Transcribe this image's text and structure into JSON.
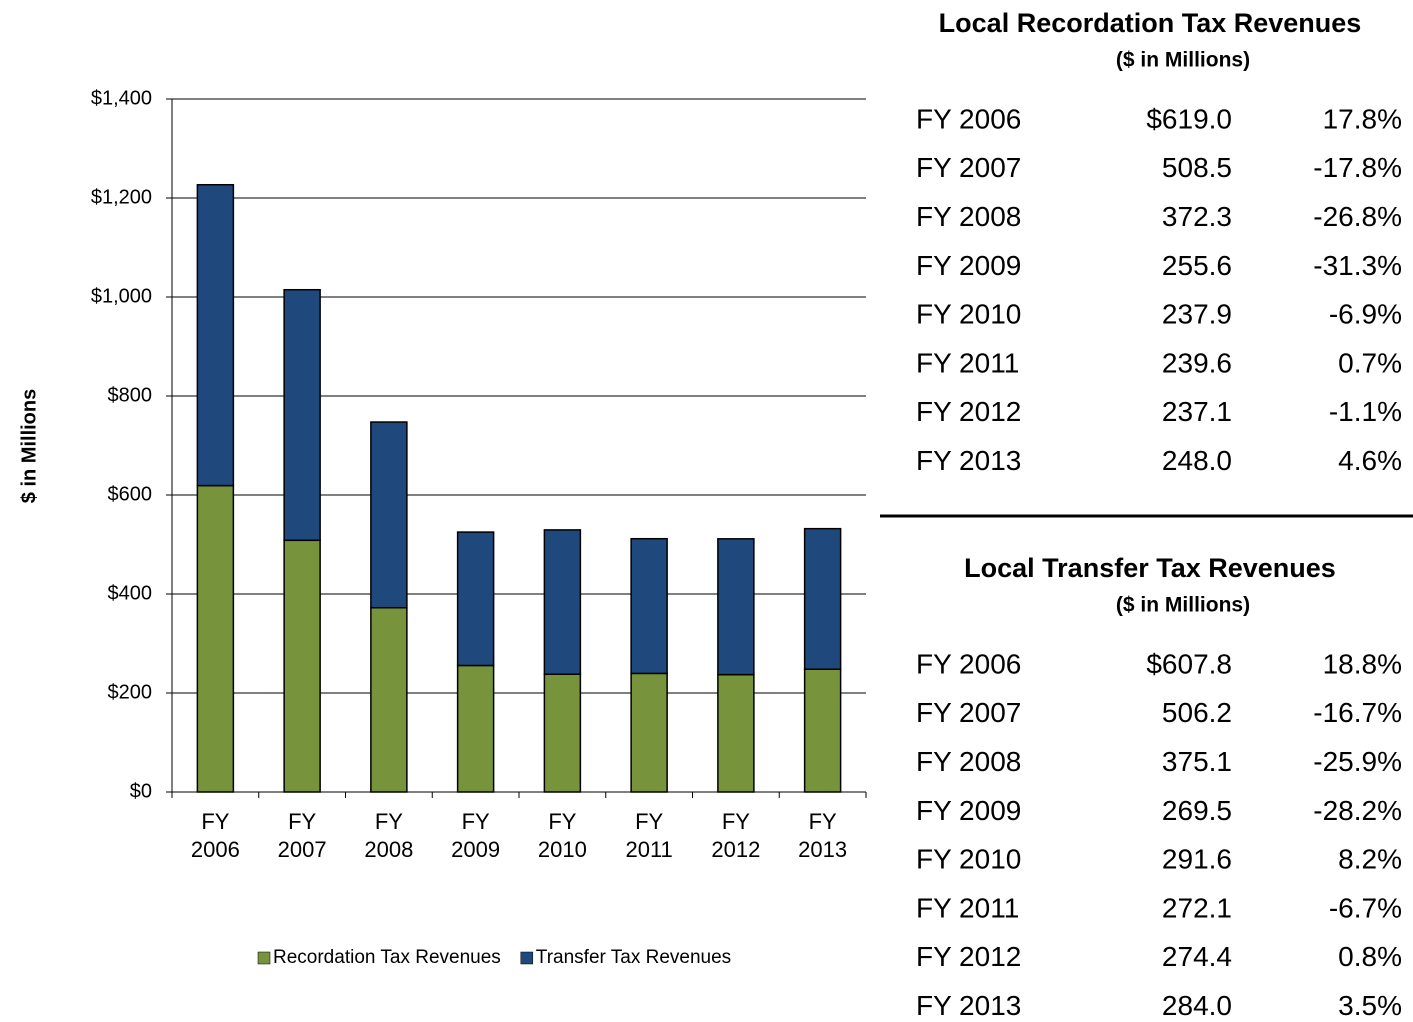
{
  "chart_data": {
    "type": "stacked_bar",
    "ylabel": "$ in Millions",
    "categories": [
      "FY 2006",
      "FY 2007",
      "FY 2008",
      "FY 2009",
      "FY 2010",
      "FY 2011",
      "FY 2012",
      "FY 2013"
    ],
    "series": [
      {
        "name": "Recordation Tax Revenues",
        "color": "#77933c",
        "values": [
          619.0,
          508.5,
          372.3,
          255.6,
          237.9,
          239.6,
          237.1,
          248.0
        ]
      },
      {
        "name": "Transfer Tax Revenues",
        "color": "#1f497d",
        "values": [
          607.8,
          506.2,
          375.1,
          269.5,
          291.6,
          272.1,
          274.4,
          284.0
        ]
      }
    ],
    "ylim": [
      0,
      1400
    ],
    "yticks": [
      {
        "value": 0,
        "label": "$0"
      },
      {
        "value": 200,
        "label": "$200"
      },
      {
        "value": 400,
        "label": "$400"
      },
      {
        "value": 600,
        "label": "$600"
      },
      {
        "value": 800,
        "label": "$800"
      },
      {
        "value": 1000,
        "label": "$1,000"
      },
      {
        "value": 1200,
        "label": "$1,200"
      },
      {
        "value": 1400,
        "label": "$1,400"
      }
    ],
    "grid": true,
    "legend": "bottom"
  },
  "tables": [
    {
      "title": "Local Recordation Tax Revenues",
      "subtitle": "($ in Millions)",
      "rows": [
        [
          "FY 2006",
          "$619.0",
          "17.8%"
        ],
        [
          "FY 2007",
          "508.5",
          "-17.8%"
        ],
        [
          "FY 2008",
          "372.3",
          "-26.8%"
        ],
        [
          "FY 2009",
          "255.6",
          "-31.3%"
        ],
        [
          "FY 2010",
          "237.9",
          "-6.9%"
        ],
        [
          "FY 2011",
          "239.6",
          "0.7%"
        ],
        [
          "FY 2012",
          "237.1",
          "-1.1%"
        ],
        [
          "FY 2013",
          "248.0",
          "4.6%"
        ]
      ]
    },
    {
      "title": "Local Transfer Tax Revenues",
      "subtitle": "($ in Millions)",
      "rows": [
        [
          "FY 2006",
          "$607.8",
          "18.8%"
        ],
        [
          "FY 2007",
          "506.2",
          "-16.7%"
        ],
        [
          "FY 2008",
          "375.1",
          "-25.9%"
        ],
        [
          "FY 2009",
          "269.5",
          "-28.2%"
        ],
        [
          "FY 2010",
          "291.6",
          "8.2%"
        ],
        [
          "FY 2011",
          "272.1",
          "-6.7%"
        ],
        [
          "FY 2012",
          "274.4",
          "0.8%"
        ],
        [
          "FY 2013",
          "284.0",
          "3.5%"
        ]
      ]
    }
  ]
}
